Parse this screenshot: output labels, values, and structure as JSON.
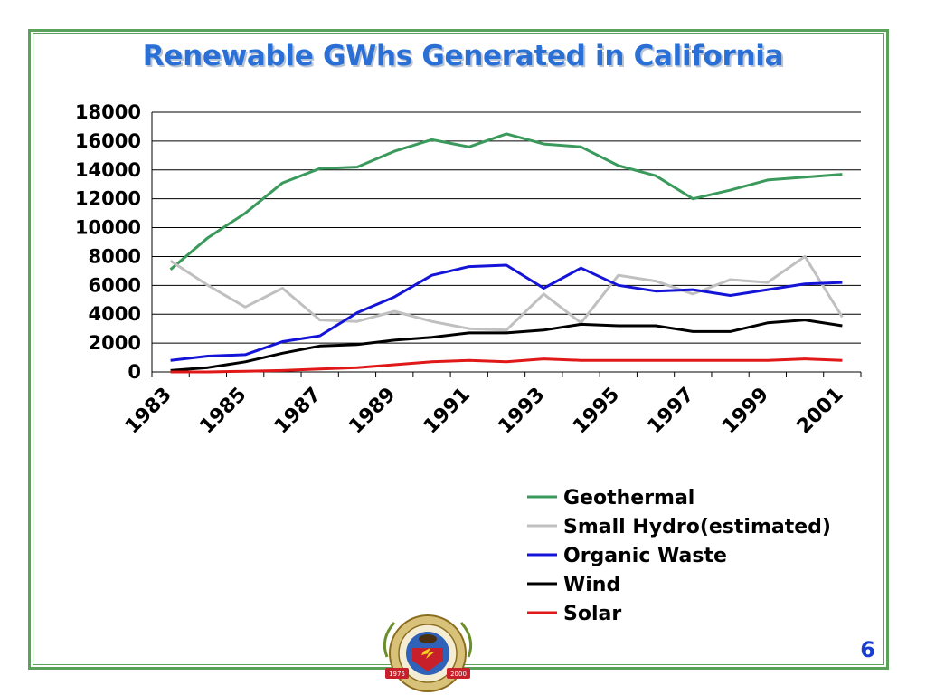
{
  "slide": {
    "title": "Renewable GWhs Generated in California",
    "page_number": "6",
    "seal_text_top": "STATE OF CALIFORNIA",
    "seal_text_bottom": "ENERGY COMMISSION",
    "seal_year_left": "1975",
    "seal_year_right": "2000"
  },
  "colors": {
    "title": "#2a6fd6",
    "frame": "#5aa25a",
    "page_number": "#1a3fd0"
  },
  "chart_data": {
    "type": "line",
    "title": "Renewable GWhs Generated in California",
    "xlabel": "",
    "ylabel": "",
    "ylim": [
      0,
      18000
    ],
    "yticks": [
      "0",
      "2000",
      "4000",
      "6000",
      "8000",
      "10000",
      "12000",
      "14000",
      "16000",
      "18000"
    ],
    "x": [
      1983,
      1984,
      1985,
      1986,
      1987,
      1988,
      1989,
      1990,
      1991,
      1992,
      1993,
      1994,
      1995,
      1996,
      1997,
      1998,
      1999,
      2000,
      2001
    ],
    "xtick_labels": [
      "1983",
      "1985",
      "1987",
      "1989",
      "1991",
      "1993",
      "1995",
      "1997",
      "1999",
      "2001"
    ],
    "grid": "horizontal",
    "legend_position": "bottom-right",
    "series": [
      {
        "name": "Geothermal",
        "color": "#3a9a5c",
        "values": [
          7100,
          9300,
          11000,
          13100,
          14100,
          14200,
          15300,
          16100,
          15600,
          16500,
          15800,
          15600,
          14300,
          13600,
          12000,
          12600,
          13300,
          13500,
          13700
        ]
      },
      {
        "name": "Small Hydro(estimated)",
        "color": "#c0c0c0",
        "values": [
          7700,
          6000,
          4500,
          5800,
          3600,
          3500,
          4200,
          3500,
          3000,
          2900,
          5400,
          3400,
          6700,
          6300,
          5400,
          6400,
          6200,
          8000,
          3800
        ]
      },
      {
        "name": "Organic Waste",
        "color": "#1414d8",
        "values": [
          800,
          1100,
          1200,
          2100,
          2500,
          4100,
          5200,
          6700,
          7300,
          7400,
          5800,
          7200,
          6000,
          5600,
          5700,
          5300,
          5700,
          6100,
          6200
        ]
      },
      {
        "name": "Wind",
        "color": "#000000",
        "values": [
          100,
          300,
          700,
          1300,
          1800,
          1900,
          2200,
          2400,
          2700,
          2700,
          2900,
          3300,
          3200,
          3200,
          2800,
          2800,
          3400,
          3600,
          3200
        ]
      },
      {
        "name": "Solar",
        "color": "#e01818",
        "values": [
          0,
          0,
          50,
          100,
          200,
          300,
          500,
          700,
          800,
          700,
          900,
          800,
          800,
          800,
          800,
          800,
          800,
          900,
          800
        ]
      }
    ]
  }
}
